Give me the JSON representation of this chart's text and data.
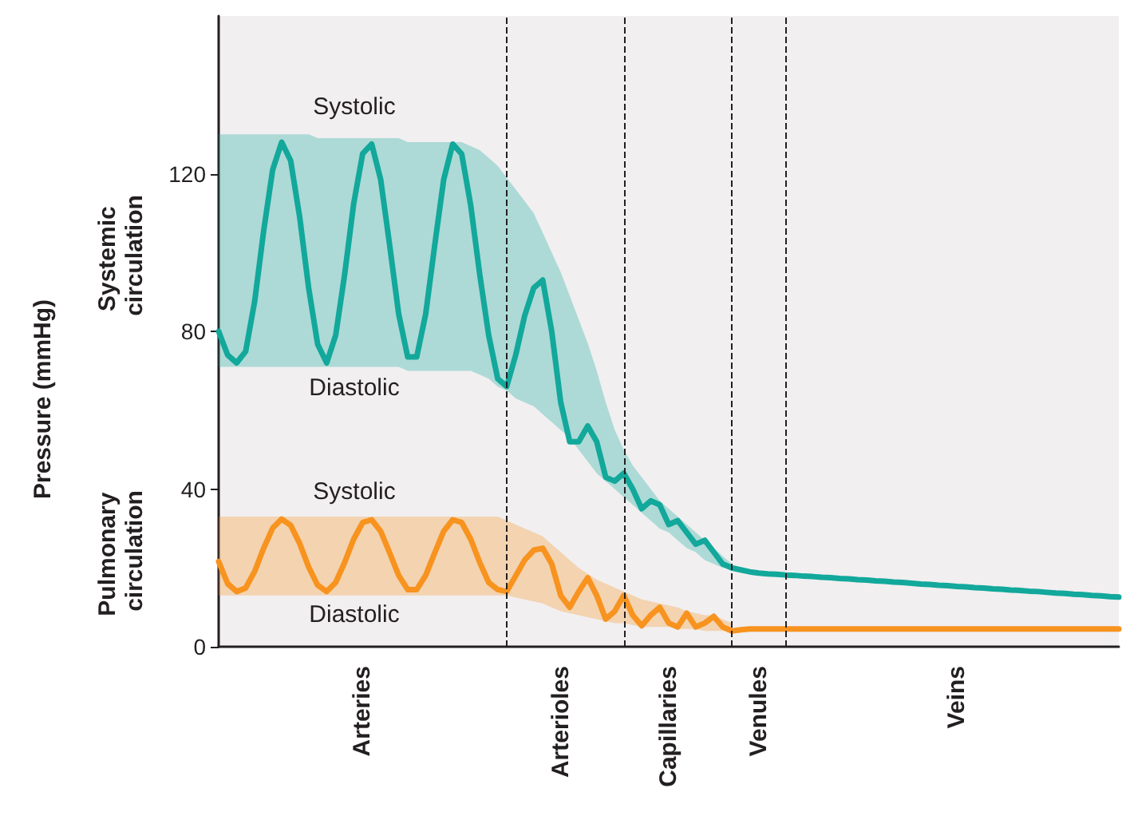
{
  "chart_data": {
    "type": "line",
    "ylim": [
      0,
      160
    ],
    "yticks": [
      0,
      40,
      80,
      120
    ],
    "grid": false,
    "marker": "none",
    "line_style": "solid",
    "categories": [
      null,
      null,
      null,
      null,
      null,
      null,
      null,
      null,
      null,
      null,
      null,
      null,
      null,
      null,
      null,
      null,
      "Arteries",
      null,
      null,
      null,
      null,
      null,
      null,
      null,
      null,
      null,
      null,
      null,
      null,
      null,
      null,
      null,
      null,
      null,
      null,
      null,
      null,
      null,
      "Arterioles",
      null,
      null,
      null,
      null,
      null,
      null,
      null,
      null,
      null,
      null,
      null,
      "Capillaries",
      null,
      null,
      null,
      null,
      null,
      null,
      null,
      null,
      null,
      "Venules",
      null,
      null,
      null,
      null,
      null,
      null,
      null,
      null,
      null,
      null,
      null,
      null,
      null,
      null,
      null,
      null,
      null,
      null,
      null,
      null,
      null,
      "Veins",
      null,
      null,
      null,
      null,
      null,
      null,
      null,
      null,
      null,
      null,
      null,
      null,
      null,
      null,
      null,
      null,
      null,
      null
    ],
    "series": [
      {
        "color": "#12a89b",
        "values": [
          80,
          74,
          72,
          74.9,
          87.6,
          105.5,
          121,
          128,
          123.3,
          109,
          91,
          76.7,
          72,
          79,
          94.5,
          112.4,
          125.1,
          127.5,
          118.5,
          101.8,
          84.4,
          73.5,
          73.5,
          84.4,
          101.8,
          118.5,
          127.5,
          125,
          112,
          94.5,
          79,
          68,
          66,
          74,
          84,
          91,
          93,
          80,
          62,
          52,
          52,
          56,
          52,
          43,
          42,
          44,
          40,
          35,
          37,
          36,
          31,
          32,
          29,
          26,
          27,
          24,
          21,
          20,
          19.5,
          19,
          18.7,
          18.5,
          18.4,
          18.2,
          18.1,
          17.9,
          17.8,
          17.6,
          17.5,
          17.3,
          17.2,
          17.0,
          16.9,
          16.7,
          16.6,
          16.4,
          16.3,
          16.1,
          15.9,
          15.8,
          15.6,
          15.5,
          15.3,
          15.2,
          15.0,
          14.9,
          14.7,
          14.6,
          14.4,
          14.3,
          14.1,
          14.0,
          13.8,
          13.6,
          13.5,
          13.3,
          13.2,
          13.0,
          12.9,
          12.7,
          12.6
        ],
        "lower": [
          71,
          71,
          71,
          71,
          71,
          71,
          71,
          71,
          71,
          71,
          71,
          71,
          71,
          71,
          71,
          71,
          71,
          71,
          71,
          71,
          71,
          70,
          70,
          70,
          70,
          70,
          70,
          70,
          70,
          69,
          68,
          66,
          65,
          63,
          62,
          61,
          59,
          57,
          55,
          53,
          50,
          47,
          44,
          42,
          40,
          38,
          36,
          34,
          32,
          30,
          29,
          27,
          25,
          24,
          22,
          21,
          20,
          20,
          null,
          null,
          null,
          null,
          null,
          null,
          null,
          null,
          null,
          null,
          null,
          null,
          null,
          null,
          null,
          null,
          null,
          null,
          null,
          null,
          null,
          null,
          null,
          null,
          null,
          null,
          null,
          null,
          null,
          null,
          null,
          null,
          null,
          null,
          null,
          null,
          null,
          null,
          null,
          null,
          null,
          null,
          null
        ],
        "upper": [
          130,
          130,
          130,
          130,
          130,
          130,
          130,
          130,
          130,
          130,
          130,
          129,
          129,
          129,
          129,
          129,
          129,
          129,
          129,
          129,
          129,
          128,
          128,
          128,
          128,
          128,
          128,
          128,
          127,
          126,
          124,
          122,
          119,
          116,
          113,
          110,
          105,
          100,
          95,
          89,
          83,
          77,
          70,
          62,
          55,
          50,
          46,
          43,
          40,
          37,
          35,
          33,
          31,
          29,
          27,
          25,
          23,
          21,
          null,
          null,
          null,
          null,
          null,
          null,
          null,
          null,
          null,
          null,
          null,
          null,
          null,
          null,
          null,
          null,
          null,
          null,
          null,
          null,
          null,
          null,
          null,
          null,
          null,
          null,
          null,
          null,
          null,
          null,
          null,
          null,
          null,
          null,
          null,
          null,
          null,
          null,
          null,
          null,
          null,
          null,
          null
        ]
      },
      {
        "color": "#f7931e",
        "values": [
          21.6,
          16,
          14,
          14.9,
          19.1,
          25.0,
          30.1,
          32.4,
          30.8,
          26.2,
          20.2,
          15.6,
          14.0,
          16.3,
          21.4,
          27.3,
          31.5,
          32.2,
          29.3,
          23.8,
          18.1,
          14.5,
          14.5,
          18.1,
          23.8,
          29.3,
          32.2,
          31.5,
          27.3,
          21.4,
          16.3,
          14.5,
          14,
          18,
          22,
          24.5,
          25,
          21,
          13,
          10,
          14,
          17.5,
          13,
          7,
          9,
          13,
          8,
          5.3,
          8,
          10,
          6,
          5,
          8.5,
          5,
          6,
          7.7,
          5,
          4,
          4.3,
          4.5,
          4.5,
          4.5,
          4.5,
          4.5,
          4.5,
          4.5,
          4.5,
          4.5,
          4.5,
          4.5,
          4.5,
          4.5,
          4.5,
          4.5,
          4.5,
          4.5,
          4.5,
          4.5,
          4.5,
          4.5,
          4.5,
          4.5,
          4.5,
          4.5,
          4.5,
          4.5,
          4.5,
          4.5,
          4.5,
          4.5,
          4.5,
          4.5,
          4.5,
          4.5,
          4.5,
          4.5,
          4.5,
          4.5,
          4.5,
          4.5,
          4.5
        ],
        "lower": [
          13,
          13,
          13,
          13,
          13,
          13,
          13,
          13,
          13,
          13,
          13,
          13,
          13,
          13,
          13,
          13,
          13,
          13,
          13,
          13,
          13,
          13,
          13,
          13,
          13,
          13,
          13,
          13,
          13,
          13,
          13,
          13,
          13,
          12.5,
          12,
          11.5,
          11,
          10,
          9,
          8.5,
          8,
          7.5,
          7,
          6.5,
          6,
          6,
          5.5,
          5,
          5,
          5,
          5,
          4.5,
          4.5,
          4.5,
          4,
          4,
          4,
          4,
          null,
          null,
          null,
          null,
          null,
          null,
          null,
          null,
          null,
          null,
          null,
          null,
          null,
          null,
          null,
          null,
          null,
          null,
          null,
          null,
          null,
          null,
          null,
          null,
          null,
          null,
          null,
          null,
          null,
          null,
          null,
          null,
          null,
          null,
          null,
          null,
          null,
          null,
          null,
          null,
          null,
          null,
          null
        ],
        "upper": [
          33,
          33,
          33,
          33,
          33,
          33,
          33,
          33,
          33,
          33,
          33,
          33,
          33,
          33,
          33,
          33,
          33,
          33,
          33,
          33,
          33,
          33,
          33,
          33,
          33,
          33,
          33,
          33,
          33,
          33,
          33,
          33,
          32,
          31,
          30,
          29,
          28,
          26,
          24,
          22,
          20,
          18.5,
          17,
          16,
          15,
          14,
          13,
          12,
          11.5,
          11,
          10.5,
          10,
          9,
          8.5,
          8,
          8,
          7,
          6,
          null,
          null,
          null,
          null,
          null,
          null,
          null,
          null,
          null,
          null,
          null,
          null,
          null,
          null,
          null,
          null,
          null,
          null,
          null,
          null,
          null,
          null,
          null,
          null,
          null,
          null,
          null,
          null,
          null,
          null,
          null,
          null,
          null,
          null,
          null,
          null,
          null,
          null,
          null,
          null,
          null,
          null,
          null
        ]
      }
    ],
    "annotations": [
      "Systolic",
      "Diastolic",
      "Systolic",
      "Diastolic",
      "Systemic circulation",
      "Pulmonary circulation",
      "Pressure (mmHg)"
    ]
  }
}
